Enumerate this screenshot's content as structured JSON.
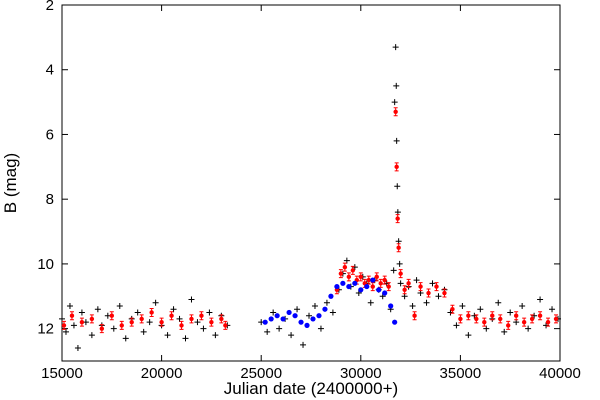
{
  "chart_data": {
    "type": "scatter",
    "title": "",
    "xlabel": "Julian date (2400000+)",
    "ylabel": "B (mag)",
    "xlim": [
      15000,
      40000
    ],
    "ylim": [
      13,
      2
    ],
    "y_inverted": true,
    "xticks": [
      15000,
      20000,
      25000,
      30000,
      35000,
      40000
    ],
    "yticks": [
      2,
      4,
      6,
      8,
      10,
      12
    ],
    "grid": false,
    "legend": "none",
    "series": [
      {
        "marker": "plus",
        "color": "#000000",
        "points": [
          [
            15000,
            11.7
          ],
          [
            15200,
            12.1
          ],
          [
            15400,
            11.3
          ],
          [
            15600,
            11.9
          ],
          [
            15800,
            12.6
          ],
          [
            16000,
            11.5
          ],
          [
            16200,
            11.8
          ],
          [
            16500,
            12.2
          ],
          [
            16800,
            11.4
          ],
          [
            17000,
            11.9
          ],
          [
            17300,
            11.6
          ],
          [
            17600,
            12.0
          ],
          [
            17900,
            11.3
          ],
          [
            18200,
            12.3
          ],
          [
            18500,
            11.7
          ],
          [
            18800,
            11.5
          ],
          [
            19100,
            12.1
          ],
          [
            19400,
            11.8
          ],
          [
            19700,
            11.2
          ],
          [
            20000,
            11.9
          ],
          [
            20300,
            12.2
          ],
          [
            20600,
            11.4
          ],
          [
            20900,
            11.7
          ],
          [
            21200,
            12.3
          ],
          [
            21500,
            11.1
          ],
          [
            21800,
            11.8
          ],
          [
            22100,
            12.0
          ],
          [
            22400,
            11.5
          ],
          [
            22700,
            12.2
          ],
          [
            23000,
            11.6
          ],
          [
            23300,
            11.9
          ],
          [
            25000,
            11.8
          ],
          [
            25300,
            12.1
          ],
          [
            25600,
            11.5
          ],
          [
            25900,
            12.0
          ],
          [
            26200,
            11.7
          ],
          [
            26500,
            12.2
          ],
          [
            26800,
            11.4
          ],
          [
            27100,
            12.5
          ],
          [
            27400,
            11.6
          ],
          [
            27700,
            11.3
          ],
          [
            28000,
            12.0
          ],
          [
            28300,
            11.2
          ],
          [
            28600,
            11.5
          ],
          [
            28900,
            10.8
          ],
          [
            29100,
            10.3
          ],
          [
            29300,
            9.9
          ],
          [
            29500,
            10.7
          ],
          [
            29700,
            10.1
          ],
          [
            29900,
            10.9
          ],
          [
            30100,
            10.4
          ],
          [
            30300,
            10.6
          ],
          [
            30500,
            11.2
          ],
          [
            30700,
            10.5
          ],
          [
            30900,
            10.8
          ],
          [
            31100,
            11.0
          ],
          [
            31300,
            10.6
          ],
          [
            31500,
            11.4
          ],
          [
            31650,
            10.2
          ],
          [
            31700,
            5.0
          ],
          [
            31750,
            3.3
          ],
          [
            31780,
            4.5
          ],
          [
            31800,
            6.2
          ],
          [
            31830,
            7.6
          ],
          [
            31860,
            8.4
          ],
          [
            31900,
            9.3
          ],
          [
            31950,
            10.0
          ],
          [
            32000,
            10.6
          ],
          [
            32200,
            11.0
          ],
          [
            32400,
            10.7
          ],
          [
            32600,
            11.3
          ],
          [
            32800,
            10.5
          ],
          [
            33000,
            10.9
          ],
          [
            33300,
            11.2
          ],
          [
            33600,
            10.6
          ],
          [
            33900,
            11.0
          ],
          [
            34200,
            10.8
          ],
          [
            34500,
            11.5
          ],
          [
            34800,
            11.9
          ],
          [
            35100,
            11.3
          ],
          [
            35400,
            12.2
          ],
          [
            35700,
            11.6
          ],
          [
            36000,
            11.4
          ],
          [
            36300,
            12.0
          ],
          [
            36600,
            11.7
          ],
          [
            36900,
            11.2
          ],
          [
            37200,
            12.1
          ],
          [
            37500,
            11.5
          ],
          [
            37800,
            11.8
          ],
          [
            38100,
            11.3
          ],
          [
            38400,
            12.0
          ],
          [
            38700,
            11.6
          ],
          [
            39000,
            11.1
          ],
          [
            39300,
            11.9
          ],
          [
            39600,
            11.4
          ],
          [
            39900,
            11.7
          ]
        ]
      },
      {
        "marker": "dot-errorbar",
        "color": "#ff0000",
        "points": [
          [
            15100,
            11.9
          ],
          [
            15500,
            11.6
          ],
          [
            16000,
            11.8
          ],
          [
            16500,
            11.7
          ],
          [
            17000,
            12.0
          ],
          [
            17500,
            11.6
          ],
          [
            18000,
            11.9
          ],
          [
            18500,
            11.8
          ],
          [
            19000,
            11.7
          ],
          [
            19500,
            11.5
          ],
          [
            20000,
            11.8
          ],
          [
            20500,
            11.6
          ],
          [
            21000,
            11.9
          ],
          [
            21500,
            11.7
          ],
          [
            22000,
            11.6
          ],
          [
            22500,
            11.8
          ],
          [
            23000,
            11.7
          ],
          [
            23200,
            11.9
          ],
          [
            28800,
            10.8
          ],
          [
            29000,
            10.3
          ],
          [
            29200,
            10.1
          ],
          [
            29400,
            10.4
          ],
          [
            29600,
            10.2
          ],
          [
            29800,
            10.5
          ],
          [
            30000,
            10.4
          ],
          [
            30200,
            10.6
          ],
          [
            30400,
            10.5
          ],
          [
            30600,
            10.7
          ],
          [
            30800,
            10.4
          ],
          [
            31000,
            10.6
          ],
          [
            31200,
            10.5
          ],
          [
            31400,
            10.7
          ],
          [
            31750,
            5.3
          ],
          [
            31800,
            7.0
          ],
          [
            31850,
            8.6
          ],
          [
            31900,
            9.5
          ],
          [
            32000,
            10.3
          ],
          [
            32200,
            10.8
          ],
          [
            32400,
            10.6
          ],
          [
            32700,
            11.6
          ],
          [
            33000,
            10.7
          ],
          [
            33400,
            10.9
          ],
          [
            33800,
            10.7
          ],
          [
            34200,
            10.9
          ],
          [
            34600,
            11.4
          ],
          [
            35000,
            11.7
          ],
          [
            35400,
            11.6
          ],
          [
            35800,
            11.7
          ],
          [
            36200,
            11.8
          ],
          [
            36600,
            11.6
          ],
          [
            37000,
            11.7
          ],
          [
            37400,
            11.9
          ],
          [
            37800,
            11.6
          ],
          [
            38200,
            11.8
          ],
          [
            38600,
            11.7
          ],
          [
            39000,
            11.6
          ],
          [
            39400,
            11.8
          ],
          [
            39800,
            11.7
          ]
        ]
      },
      {
        "marker": "dot",
        "color": "#0000ff",
        "points": [
          [
            25200,
            11.8
          ],
          [
            25500,
            11.7
          ],
          [
            25800,
            11.6
          ],
          [
            26100,
            11.7
          ],
          [
            26400,
            11.5
          ],
          [
            26700,
            11.6
          ],
          [
            27000,
            11.8
          ],
          [
            27300,
            11.9
          ],
          [
            27600,
            11.7
          ],
          [
            27900,
            11.6
          ],
          [
            28200,
            11.4
          ],
          [
            28500,
            11.0
          ],
          [
            28800,
            10.7
          ],
          [
            29100,
            10.6
          ],
          [
            29400,
            10.7
          ],
          [
            29700,
            10.6
          ],
          [
            30000,
            10.8
          ],
          [
            30300,
            10.7
          ],
          [
            30600,
            10.5
          ],
          [
            30900,
            10.8
          ],
          [
            31200,
            10.9
          ],
          [
            31500,
            11.3
          ],
          [
            31700,
            11.8
          ]
        ]
      }
    ]
  }
}
